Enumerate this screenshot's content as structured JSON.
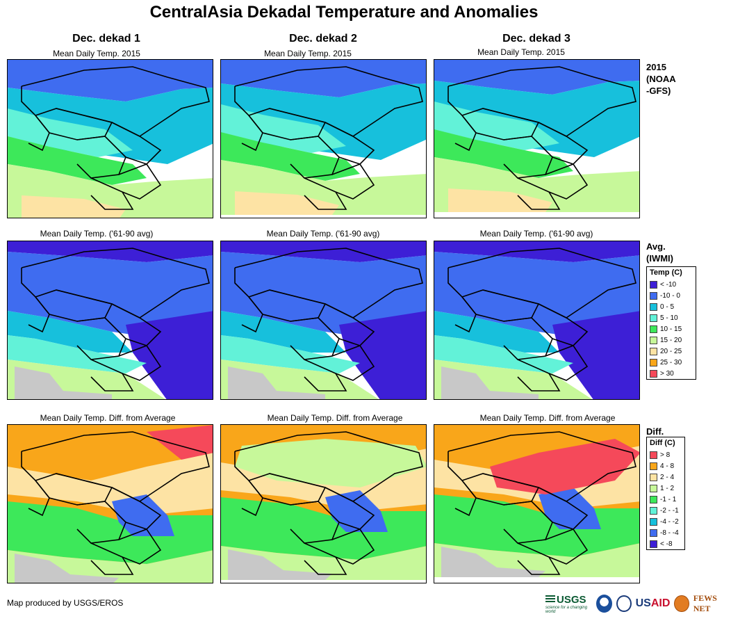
{
  "title": "CentralAsia Dekadal Temperature and Anomalies",
  "columns": [
    "Dec. dekad 1",
    "Dec. dekad 2",
    "Dec. dekad 3"
  ],
  "rows": [
    {
      "panel_title": "Mean Daily Temp. 2015",
      "label_lines": [
        "2015",
        "(NOAA",
        "-GFS)"
      ],
      "variant": "current"
    },
    {
      "panel_title": "Mean Daily Temp. ('61-90 avg)",
      "label_lines": [
        "Avg.",
        "(IWMI)"
      ],
      "variant": "average"
    },
    {
      "panel_title": "Mean Daily Temp. Diff. from Average",
      "label_lines": [
        "Diff."
      ],
      "variant": "diff"
    }
  ],
  "temp_legend": {
    "title": "Temp (C)",
    "items": [
      {
        "label": "< -10",
        "color": "#3d1fd6"
      },
      {
        "label": "-10 - 0",
        "color": "#3f6cf0"
      },
      {
        "label": "0 - 5",
        "color": "#17c0dc"
      },
      {
        "label": "5 - 10",
        "color": "#62f2d8"
      },
      {
        "label": "10 - 15",
        "color": "#3de85a"
      },
      {
        "label": "15 - 20",
        "color": "#c7f89a"
      },
      {
        "label": "20 - 25",
        "color": "#fde3a4"
      },
      {
        "label": "25 - 30",
        "color": "#f9a61a"
      },
      {
        "label": "> 30",
        "color": "#f5495a"
      }
    ]
  },
  "diff_legend": {
    "title": "Diff (C)",
    "items": [
      {
        "label": "> 8",
        "color": "#f5495a"
      },
      {
        "label": "4 - 8",
        "color": "#f9a61a"
      },
      {
        "label": "2 - 4",
        "color": "#fde3a4"
      },
      {
        "label": "1 - 2",
        "color": "#c7f89a"
      },
      {
        "label": "-1 - 1",
        "color": "#3de85a"
      },
      {
        "label": "-2 - -1",
        "color": "#62f2d8"
      },
      {
        "label": "-4 - -2",
        "color": "#17c0dc"
      },
      {
        "label": "-8 - -4",
        "color": "#3f6cf0"
      },
      {
        "label": "< -8",
        "color": "#3d1fd6"
      }
    ]
  },
  "no_data_color": "#c8c8c8",
  "footer": "Map produced by USGS/EROS",
  "logos": {
    "usgs": "USGS",
    "usgs_tagline": "science for a changing world",
    "noaa": "noaa-logo",
    "usaid_us": "US",
    "usaid_aid": "AID",
    "fews": "FEWS NET"
  }
}
